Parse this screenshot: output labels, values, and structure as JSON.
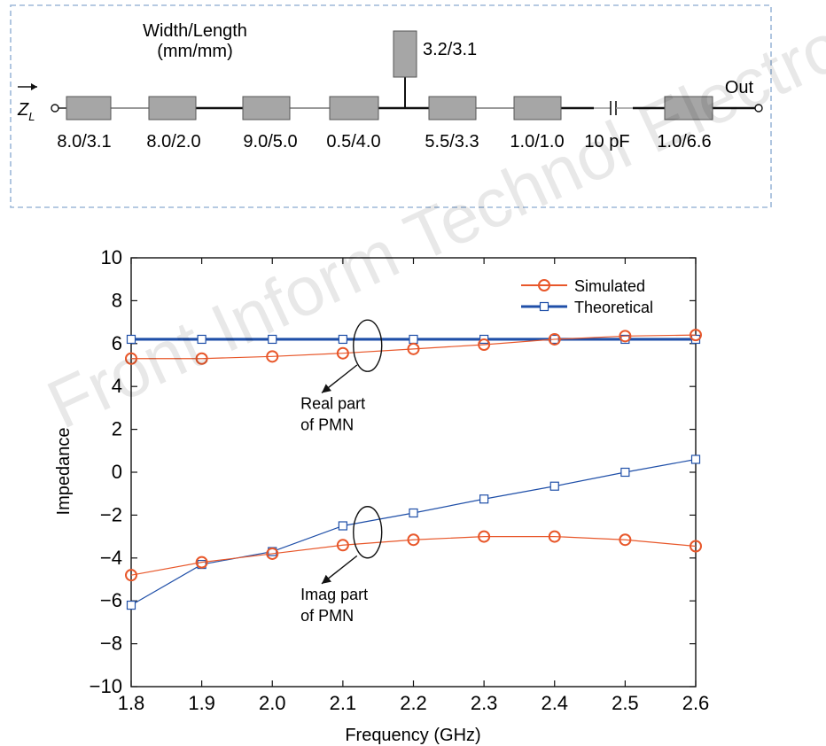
{
  "circuit": {
    "header_line1": "Width/Length",
    "header_line2": "(mm/mm)",
    "input_label": "Z",
    "input_subscript": "L",
    "output_label": "Out",
    "stub_label": "3.2/3.1",
    "segment_labels": [
      "8.0/3.1",
      "8.0/2.0",
      "9.0/5.0",
      "0.5/4.0",
      "5.5/3.3",
      "1.0/1.0",
      "1.0/6.6"
    ],
    "capacitor_label": "10 pF",
    "colors": {
      "block_fill": "#a6a6a6",
      "line": "#111111",
      "border": "#9db8d9"
    }
  },
  "chart_data": {
    "type": "line",
    "xlabel": "Frequency (GHz)",
    "ylabel": "Impedance",
    "x": [
      1.8,
      1.9,
      2.0,
      2.1,
      2.2,
      2.3,
      2.4,
      2.5,
      2.6
    ],
    "xlim": [
      1.8,
      2.6
    ],
    "ylim": [
      -10,
      10
    ],
    "xticks": [
      "1.8",
      "1.9",
      "2.0",
      "2.1",
      "2.2",
      "2.3",
      "2.4",
      "2.5",
      "2.6"
    ],
    "yticks": [
      "10",
      "8",
      "6",
      "4",
      "2",
      "0",
      "−2",
      "−4",
      "−6",
      "−8",
      "−10"
    ],
    "series": [
      {
        "name": "Simulated",
        "color": "#e8572a",
        "marker": "circle",
        "values": [
          5.3,
          5.3,
          5.4,
          5.55,
          5.75,
          5.95,
          6.2,
          6.35,
          6.4
        ]
      },
      {
        "name": "Simulated",
        "color": "#e8572a",
        "marker": "circle",
        "values": [
          -4.8,
          -4.2,
          -3.8,
          -3.4,
          -3.15,
          -3.0,
          -3.0,
          -3.15,
          -3.45
        ]
      },
      {
        "name": "Theoretical",
        "color": "#1f4fa8",
        "marker": "square",
        "values": [
          6.2,
          6.2,
          6.2,
          6.2,
          6.2,
          6.2,
          6.2,
          6.2,
          6.2
        ]
      },
      {
        "name": "Theoretical",
        "color": "#1f4fa8",
        "marker": "square",
        "values": [
          -6.2,
          -4.3,
          -3.7,
          -2.5,
          -1.9,
          -1.25,
          -0.65,
          0.0,
          0.6
        ]
      }
    ],
    "legend": {
      "position": "top-right",
      "entries": [
        "Simulated",
        "Theoretical"
      ]
    },
    "annotations": [
      {
        "line1": "Real part",
        "line2": "of PMN"
      },
      {
        "line1": "Imag part",
        "line2": "of PMN"
      }
    ],
    "grid": false
  },
  "watermark": "Front Inform Technol Electron Eng"
}
